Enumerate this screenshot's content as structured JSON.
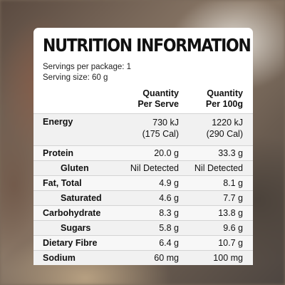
{
  "panel": {
    "title": "NUTRITION INFORMATION",
    "servings_per_package": "Servings per package: 1",
    "serving_size": "Serving size: 60 g"
  },
  "table": {
    "col_serve": [
      "Quantity",
      "Per Serve"
    ],
    "col_100g": [
      "Quantity",
      "Per 100g"
    ],
    "rows": [
      {
        "name": "Energy",
        "per_serve": [
          "730 kJ",
          "(175 Cal)"
        ],
        "per_100g": [
          "1220 kJ",
          "(290 Cal)"
        ]
      },
      {
        "name": "Protein",
        "per_serve": "20.0 g",
        "per_100g": "33.3 g"
      },
      {
        "name": "Gluten",
        "per_serve": "Nil Detected",
        "per_100g": "Nil Detected",
        "indent": true
      },
      {
        "name": "Fat, Total",
        "per_serve": "4.9 g",
        "per_100g": "8.1 g"
      },
      {
        "name": "Saturated",
        "per_serve": "4.6 g",
        "per_100g": "7.7 g",
        "indent": true
      },
      {
        "name": "Carbohydrate",
        "per_serve": "8.3 g",
        "per_100g": "13.8 g"
      },
      {
        "name": "Sugars",
        "per_serve": "5.8 g",
        "per_100g": "9.6 g",
        "indent": true
      },
      {
        "name": "Dietary Fibre",
        "per_serve": "6.4 g",
        "per_100g": "10.7 g"
      },
      {
        "name": "Sodium",
        "per_serve": "60 mg",
        "per_100g": "100 mg"
      }
    ]
  }
}
